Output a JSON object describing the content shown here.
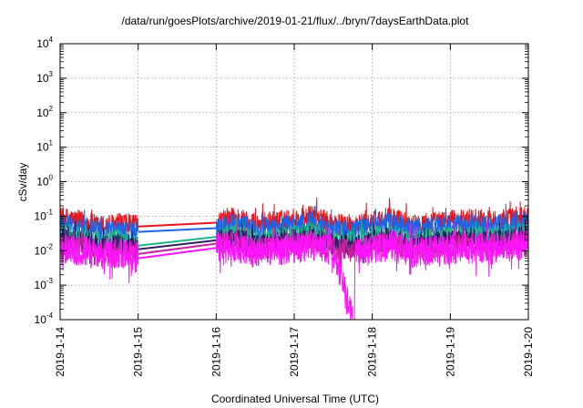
{
  "chart_data": {
    "type": "line",
    "title": "/data/run/goesPlots/archive/2019-01-21/flux/../bryn/7daysEarthData.plot",
    "xlabel": "Coordinated Universal Time (UTC)",
    "ylabel": "cSv/day",
    "yscale": "log",
    "ylim": [
      0.0001,
      10000
    ],
    "xlim": [
      "2019-1-14",
      "2019-1-20"
    ],
    "grid": true,
    "legend": "none",
    "x_ticks": [
      "2019-1-14",
      "2019-1-15",
      "2019-1-16",
      "2019-1-17",
      "2019-1-18",
      "2019-1-19",
      "2019-1-20"
    ],
    "y_ticks": [
      {
        "base": "10",
        "exp": "-4"
      },
      {
        "base": "10",
        "exp": "-3"
      },
      {
        "base": "10",
        "exp": "-2"
      },
      {
        "base": "10",
        "exp": "-1"
      },
      {
        "base": "10",
        "exp": "0"
      },
      {
        "base": "10",
        "exp": "1"
      },
      {
        "base": "10",
        "exp": "2"
      },
      {
        "base": "10",
        "exp": "3"
      },
      {
        "base": "10",
        "exp": "4"
      }
    ],
    "gap": {
      "from": 1.0,
      "to": 2.0
    },
    "series": [
      {
        "color": "#e8141c",
        "values": [
          [
            0.0,
            0.09
          ],
          [
            0.25,
            0.07
          ],
          [
            0.5,
            0.05
          ],
          [
            0.75,
            0.06
          ],
          [
            1.0,
            0.05
          ],
          [
            2.0,
            0.065
          ],
          [
            2.25,
            0.09
          ],
          [
            2.5,
            0.06
          ],
          [
            3.0,
            0.08
          ],
          [
            3.25,
            0.1
          ],
          [
            3.5,
            0.06
          ],
          [
            3.75,
            0.05
          ],
          [
            4.0,
            0.07
          ],
          [
            4.25,
            0.09
          ],
          [
            4.5,
            0.06
          ],
          [
            5.0,
            0.07
          ],
          [
            5.25,
            0.08
          ],
          [
            5.5,
            0.07
          ],
          [
            6.0,
            0.1
          ]
        ]
      },
      {
        "color": "#1e64e8",
        "values": [
          [
            0.0,
            0.06
          ],
          [
            0.25,
            0.05
          ],
          [
            0.5,
            0.035
          ],
          [
            0.75,
            0.04
          ],
          [
            1.0,
            0.035
          ],
          [
            2.0,
            0.045
          ],
          [
            2.25,
            0.06
          ],
          [
            2.5,
            0.04
          ],
          [
            3.0,
            0.055
          ],
          [
            3.25,
            0.07
          ],
          [
            3.5,
            0.04
          ],
          [
            3.75,
            0.035
          ],
          [
            4.0,
            0.05
          ],
          [
            4.25,
            0.065
          ],
          [
            4.5,
            0.04
          ],
          [
            5.0,
            0.05
          ],
          [
            5.25,
            0.055
          ],
          [
            5.5,
            0.05
          ],
          [
            6.0,
            0.075
          ]
        ]
      },
      {
        "color": "#20b48c",
        "values": [
          [
            0.0,
            0.03
          ],
          [
            0.25,
            0.025
          ],
          [
            0.5,
            0.018
          ],
          [
            0.75,
            0.02
          ],
          [
            1.0,
            0.014
          ],
          [
            2.0,
            0.025
          ],
          [
            2.25,
            0.03
          ],
          [
            2.5,
            0.02
          ],
          [
            3.0,
            0.028
          ],
          [
            3.25,
            0.035
          ],
          [
            3.5,
            0.02
          ],
          [
            3.75,
            0.018
          ],
          [
            4.0,
            0.025
          ],
          [
            4.25,
            0.032
          ],
          [
            4.5,
            0.02
          ],
          [
            5.0,
            0.025
          ],
          [
            5.25,
            0.028
          ],
          [
            5.5,
            0.025
          ],
          [
            6.0,
            0.035
          ]
        ]
      },
      {
        "color": "#2a1c5e",
        "values": [
          [
            0.0,
            0.022
          ],
          [
            0.25,
            0.018
          ],
          [
            0.5,
            0.013
          ],
          [
            0.75,
            0.015
          ],
          [
            1.0,
            0.011
          ],
          [
            2.0,
            0.02
          ],
          [
            2.25,
            0.022
          ],
          [
            2.5,
            0.015
          ],
          [
            3.0,
            0.02
          ],
          [
            3.25,
            0.026
          ],
          [
            3.5,
            0.015
          ],
          [
            3.75,
            0.013
          ],
          [
            4.0,
            0.018
          ],
          [
            4.25,
            0.024
          ],
          [
            4.5,
            0.015
          ],
          [
            5.0,
            0.018
          ],
          [
            5.25,
            0.021
          ],
          [
            5.5,
            0.018
          ],
          [
            6.0,
            0.026
          ]
        ]
      },
      {
        "color": "#c81ea0",
        "values": [
          [
            0.0,
            0.016
          ],
          [
            0.25,
            0.013
          ],
          [
            0.5,
            0.01
          ],
          [
            0.75,
            0.011
          ],
          [
            1.0,
            0.008
          ],
          [
            2.0,
            0.016
          ],
          [
            2.25,
            0.017
          ],
          [
            2.5,
            0.011
          ],
          [
            3.0,
            0.015
          ],
          [
            3.25,
            0.019
          ],
          [
            3.5,
            0.011
          ],
          [
            3.75,
            0.01
          ],
          [
            4.0,
            0.014
          ],
          [
            4.25,
            0.018
          ],
          [
            4.5,
            0.011
          ],
          [
            5.0,
            0.014
          ],
          [
            5.25,
            0.016
          ],
          [
            5.5,
            0.014
          ],
          [
            6.0,
            0.019
          ]
        ]
      },
      {
        "color": "#ff14ff",
        "values": [
          [
            0.0,
            0.012
          ],
          [
            0.25,
            0.01
          ],
          [
            0.5,
            0.008
          ],
          [
            0.75,
            0.009
          ],
          [
            1.0,
            0.006
          ],
          [
            2.0,
            0.012
          ],
          [
            2.25,
            0.013
          ],
          [
            2.5,
            0.009
          ],
          [
            3.0,
            0.012
          ],
          [
            3.25,
            0.014
          ],
          [
            3.5,
            0.009
          ],
          [
            3.75,
            0.0001
          ],
          [
            3.76,
            0.009
          ],
          [
            4.0,
            0.011
          ],
          [
            4.25,
            0.014
          ],
          [
            4.5,
            0.009
          ],
          [
            5.0,
            0.011
          ],
          [
            5.25,
            0.012
          ],
          [
            5.5,
            0.011
          ],
          [
            6.0,
            0.015
          ]
        ]
      }
    ]
  }
}
